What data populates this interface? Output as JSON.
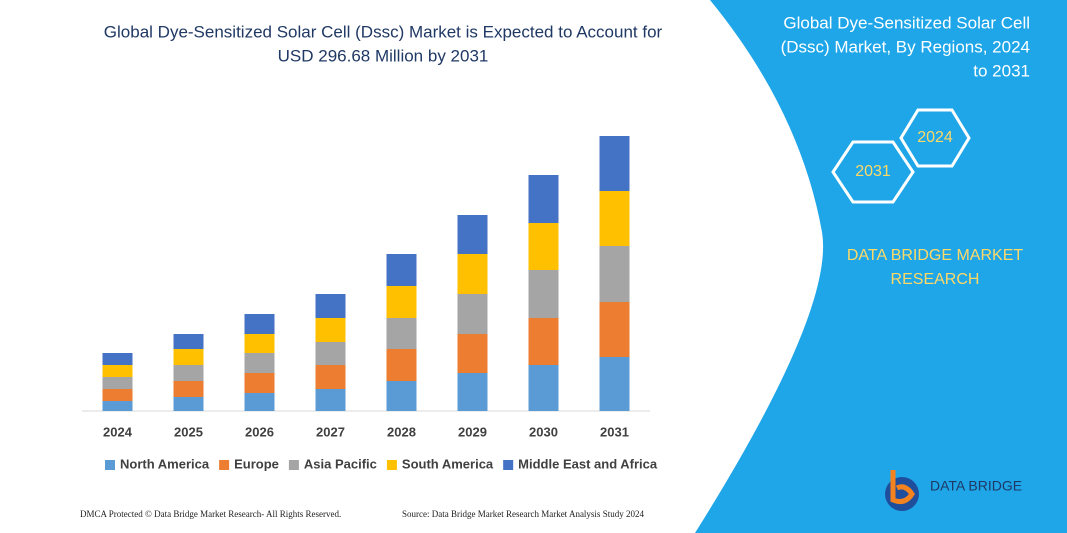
{
  "chart_data": {
    "type": "stacked_bar",
    "title": [
      "Global Dye-Sensitized Solar Cell (Dssc) Market is Expected to Account for",
      "USD 296.68 Million by 2031"
    ],
    "categories": [
      "2024",
      "2025",
      "2026",
      "2027",
      "2028",
      "2029",
      "2030",
      "2031"
    ],
    "series": [
      {
        "name": "North America",
        "color": "#5b9bd5",
        "values": [
          10,
          14,
          18,
          22,
          30,
          38,
          46,
          54
        ]
      },
      {
        "name": "Europe",
        "color": "#ed7d31",
        "values": [
          12,
          16,
          20,
          24,
          32,
          39,
          47,
          55
        ]
      },
      {
        "name": "Asia Pacific",
        "color": "#a5a5a5",
        "values": [
          12,
          16,
          20,
          23,
          31,
          40,
          48,
          56
        ]
      },
      {
        "name": "South America",
        "color": "#ffc000",
        "values": [
          12,
          16,
          19,
          24,
          32,
          40,
          47,
          55
        ]
      },
      {
        "name": "Middle East and Africa",
        "color": "#4472c4",
        "values": [
          12,
          15,
          20,
          24,
          32,
          39,
          48,
          55
        ]
      }
    ],
    "ylim": [
      0,
      290
    ],
    "legend": "bottom"
  },
  "panel": {
    "title": [
      "Global Dye-Sensitized Solar Cell",
      "(Dssc) Market, By Regions, 2024",
      "to 2031"
    ],
    "hexagons": [
      "2024",
      "2031"
    ],
    "brand": [
      "DATA BRIDGE MARKET",
      "RESEARCH"
    ],
    "logo": "DATA BRIDGE"
  },
  "footer": {
    "left": "DMCA Protected © Data Bridge Market Research-  All Rights Reserved.",
    "right": "Source: Data Bridge Market Research  Market Analysis Study 2024"
  }
}
